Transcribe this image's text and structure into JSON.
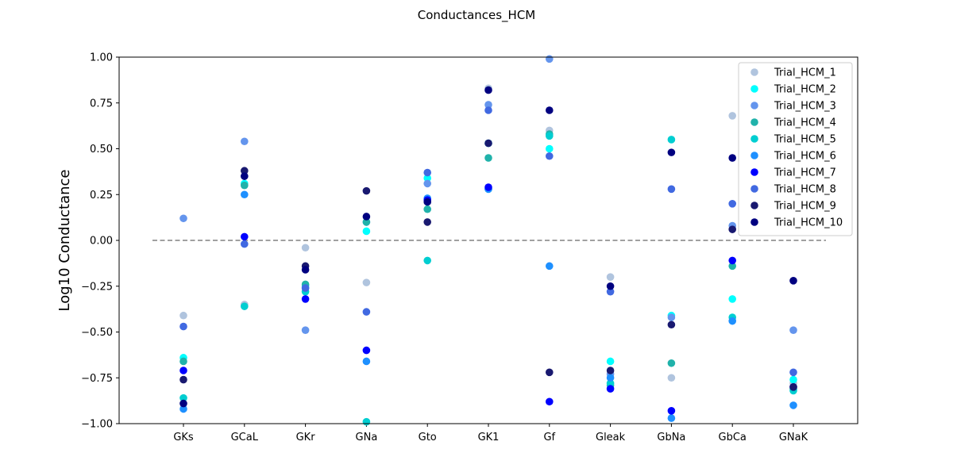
{
  "chart_data": {
    "type": "scatter",
    "title": "Conductances_HCM",
    "xlabel": "",
    "ylabel": "Log10 Conductance",
    "categories": [
      "GKs",
      "GCaL",
      "GKr",
      "GNa",
      "Gto",
      "GK1",
      "Gf",
      "Gleak",
      "GbNa",
      "GbCa",
      "GNaK"
    ],
    "ylim": [
      -1.0,
      1.0
    ],
    "yticks": [
      -1.0,
      -0.75,
      -0.5,
      -0.25,
      0.0,
      0.25,
      0.5,
      0.75,
      1.0
    ],
    "ytick_labels": [
      "−1.00",
      "−0.75",
      "−0.50",
      "−0.25",
      "0.00",
      "0.25",
      "0.50",
      "0.75",
      "1.00"
    ],
    "reference_line": {
      "y": 0.0,
      "style": "dashed",
      "color": "#808080"
    },
    "grid": false,
    "legend_position": "top-right",
    "series": [
      {
        "name": "Trial_HCM_1",
        "color": "#b0c4de",
        "values": [
          -0.41,
          -0.35,
          -0.04,
          -0.23,
          0.21,
          0.83,
          0.6,
          -0.2,
          -0.75,
          0.68,
          -0.78
        ]
      },
      {
        "name": "Trial_HCM_2",
        "color": "#00ffff",
        "values": [
          -0.64,
          0.31,
          -0.25,
          0.05,
          0.34,
          0.53,
          0.5,
          -0.66,
          -0.41,
          -0.32,
          -0.76
        ]
      },
      {
        "name": "Trial_HCM_3",
        "color": "#6495ed",
        "values": [
          0.12,
          0.54,
          -0.49,
          0.1,
          0.31,
          0.74,
          0.99,
          -0.73,
          -0.42,
          0.08,
          -0.49
        ]
      },
      {
        "name": "Trial_HCM_4",
        "color": "#20b2aa",
        "values": [
          -0.66,
          0.3,
          -0.24,
          0.1,
          0.17,
          0.45,
          0.58,
          -0.79,
          -0.67,
          -0.14,
          -0.81
        ]
      },
      {
        "name": "Trial_HCM_5",
        "color": "#00ced1",
        "values": [
          -0.86,
          -0.36,
          -0.28,
          -0.99,
          -0.11,
          0.28,
          0.57,
          -0.78,
          0.55,
          -0.42,
          -0.82
        ]
      },
      {
        "name": "Trial_HCM_6",
        "color": "#1e90ff",
        "values": [
          -0.92,
          0.25,
          -0.26,
          -0.66,
          0.23,
          0.28,
          -0.14,
          -0.75,
          -0.97,
          -0.44,
          -0.9
        ]
      },
      {
        "name": "Trial_HCM_7",
        "color": "#0000ff",
        "values": [
          -0.71,
          0.02,
          -0.32,
          -0.6,
          0.22,
          0.29,
          -0.88,
          -0.81,
          -0.93,
          -0.11,
          -0.8
        ]
      },
      {
        "name": "Trial_HCM_8",
        "color": "#4169e1",
        "values": [
          -0.47,
          -0.02,
          -0.26,
          -0.39,
          0.37,
          0.71,
          0.46,
          -0.28,
          0.28,
          0.2,
          -0.72
        ]
      },
      {
        "name": "Trial_HCM_9",
        "color": "#191970",
        "values": [
          -0.76,
          0.38,
          -0.14,
          0.27,
          0.1,
          0.53,
          -0.72,
          -0.71,
          -0.46,
          0.06,
          -0.8
        ]
      },
      {
        "name": "Trial_HCM_10",
        "color": "#000080",
        "values": [
          -0.89,
          0.35,
          -0.16,
          0.13,
          0.21,
          0.82,
          0.71,
          -0.25,
          0.48,
          0.45,
          -0.22
        ]
      }
    ]
  }
}
